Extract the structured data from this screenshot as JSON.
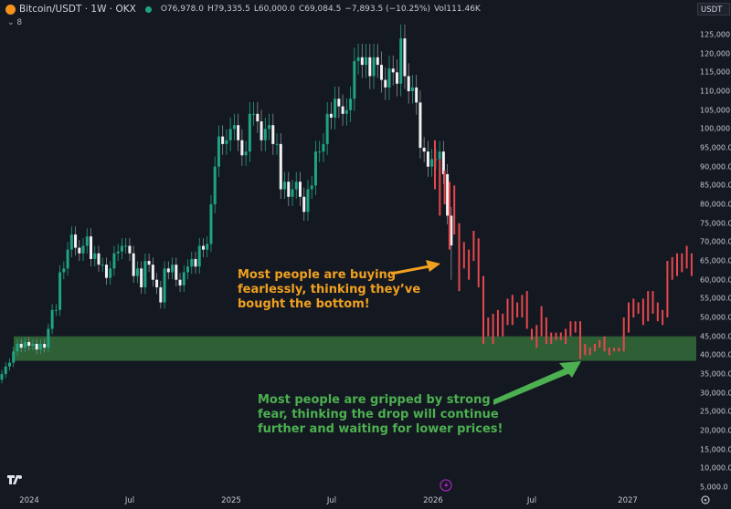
{
  "header": {
    "symbol": "Bitcoin/USDT · 1W · OKX",
    "open": "O76,978.0",
    "high": "H79,335.5",
    "low": "L60,000.0",
    "close": "C69,084.5",
    "change": "−7,893.5 (−10.25%)",
    "volume": "Vol111.46K",
    "indicator_count": "⌄ 8"
  },
  "price_axis": {
    "unit": "USDT",
    "labels": [
      "125,000.0",
      "120,000.0",
      "115,000.0",
      "110,000.0",
      "105,000.0",
      "100,000.0",
      "95,000.0",
      "90,000.0",
      "85,000.0",
      "80,000.0",
      "75,000.0",
      "70,000.0",
      "65,000.0",
      "60,000.0",
      "55,000.0",
      "50,000.0",
      "45,000.0",
      "40,000.0",
      "35,000.0",
      "30,000.0",
      "25,000.0",
      "20,000.0",
      "15,000.0",
      "10,000.0",
      "5,000.0"
    ]
  },
  "time_axis": {
    "labels": [
      "2024",
      "Jul",
      "2025",
      "Jul",
      "2026",
      "Jul",
      "2027"
    ]
  },
  "annotations": {
    "buying": [
      "Most people are buying",
      "fearlessly, thinking they’ve",
      "bought the bottom!"
    ],
    "fear": [
      "Most people are gripped by strong",
      "fear, thinking the drop will continue",
      "further and waiting for lower prices!"
    ]
  },
  "colors": {
    "up": "#1fa383",
    "down": "#f2f2f2",
    "projection": "#e5484d",
    "zone": "#2f5f35",
    "buying_note": "#f0a020",
    "fear_note": "#4cb050"
  },
  "chart_data": {
    "type": "candlestick",
    "unit": "thousand USDT",
    "weekly_close": [
      35,
      37,
      38,
      41,
      43,
      42,
      43.5,
      42.5,
      43,
      41.5,
      43,
      42,
      47,
      52,
      52,
      62,
      63,
      68,
      72,
      68.5,
      67,
      69,
      71.5,
      65.5,
      67,
      64,
      64,
      60.5,
      63,
      67,
      67.5,
      69,
      69,
      67,
      61,
      63,
      58,
      65,
      64,
      60,
      58,
      54,
      63,
      62,
      64,
      60,
      58.5,
      62,
      63.5,
      65.5,
      63.5,
      69,
      68,
      69.5,
      80,
      90,
      98,
      96,
      97,
      100,
      101,
      97,
      93,
      94,
      104,
      104,
      102,
      97,
      100,
      101,
      96,
      96,
      84,
      86,
      82,
      84,
      86,
      82,
      78,
      84,
      85,
      94,
      94,
      96,
      104,
      103,
      108,
      106,
      104,
      105,
      108,
      118,
      119,
      117,
      119,
      114,
      119,
      117,
      113,
      111,
      116,
      115,
      112,
      124,
      114,
      110,
      111,
      107,
      95,
      94,
      90,
      92,
      92,
      94,
      88,
      77,
      69.1
    ],
    "projection_ranges": [
      [
        97,
        84
      ],
      [
        92,
        77
      ],
      [
        89,
        80
      ],
      [
        86,
        68
      ],
      [
        85,
        72
      ],
      [
        75,
        57
      ],
      [
        70,
        63
      ],
      [
        68,
        60
      ],
      [
        73,
        65
      ],
      [
        71,
        58
      ],
      [
        61,
        43
      ],
      [
        50,
        45
      ],
      [
        51,
        43
      ],
      [
        52,
        45
      ],
      [
        51,
        45
      ],
      [
        55,
        48
      ],
      [
        56,
        48
      ],
      [
        54,
        50
      ],
      [
        56,
        50
      ],
      [
        57,
        47
      ],
      [
        47,
        44
      ],
      [
        48,
        42
      ],
      [
        53,
        45
      ],
      [
        50,
        43
      ],
      [
        46,
        43
      ],
      [
        46,
        44
      ],
      [
        46,
        44
      ],
      [
        47,
        43
      ],
      [
        49,
        45
      ],
      [
        49,
        46
      ],
      [
        49,
        39
      ],
      [
        43,
        40
      ],
      [
        42,
        40
      ],
      [
        43,
        41
      ],
      [
        44,
        42
      ],
      [
        45,
        41
      ],
      [
        42,
        40
      ],
      [
        42,
        41
      ],
      [
        42,
        41
      ],
      [
        50,
        41
      ],
      [
        54,
        46
      ],
      [
        55,
        50
      ],
      [
        54,
        51
      ],
      [
        55,
        48
      ],
      [
        57,
        49
      ],
      [
        57,
        51
      ],
      [
        54,
        49
      ],
      [
        52,
        48
      ],
      [
        65,
        50
      ],
      [
        66,
        60
      ],
      [
        67,
        61
      ],
      [
        67,
        62
      ],
      [
        69,
        63
      ],
      [
        67,
        61
      ]
    ],
    "support_zone": [
      38.5,
      45
    ],
    "ylim": [
      5,
      125
    ]
  }
}
